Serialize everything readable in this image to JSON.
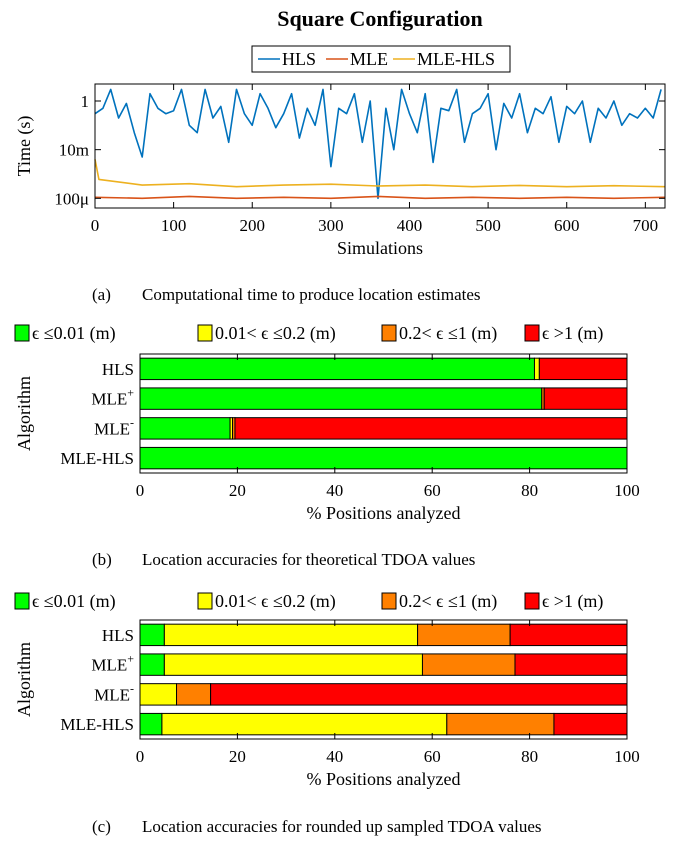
{
  "figure": {
    "title": "Square Configuration",
    "captions": [
      {
        "letter": "(a)",
        "text": "Computational time to produce location estimates"
      },
      {
        "letter": "(b)",
        "text": "Location accuracies for theoretical TDOA values"
      },
      {
        "letter": "(c)",
        "text": "Location accuracies for rounded up sampled TDOA values"
      }
    ]
  },
  "chart_data": [
    {
      "type": "line",
      "title": "Square Configuration",
      "xlabel": "Simulations",
      "ylabel": "Time (s)",
      "yscale": "log",
      "xlim": [
        0,
        725
      ],
      "ylim": [
        4e-05,
        5
      ],
      "xticks": [
        0,
        100,
        200,
        300,
        400,
        500,
        600,
        700
      ],
      "xtick_labels": [
        "0",
        "100",
        "200",
        "300",
        "400",
        "500",
        "600",
        "700"
      ],
      "yticks": [
        0.0001,
        0.01,
        1
      ],
      "ytick_labels": [
        "100μ",
        "10m",
        "1"
      ],
      "legend_position": "top-center",
      "series": [
        {
          "name": "HLS",
          "color": "#0072BD",
          "x": [
            0,
            10,
            20,
            30,
            40,
            50,
            60,
            70,
            80,
            90,
            100,
            110,
            120,
            130,
            140,
            150,
            160,
            170,
            180,
            190,
            200,
            210,
            220,
            230,
            240,
            250,
            260,
            270,
            280,
            290,
            300,
            310,
            320,
            330,
            340,
            350,
            360,
            370,
            380,
            390,
            400,
            410,
            420,
            430,
            440,
            450,
            460,
            470,
            480,
            490,
            500,
            510,
            520,
            530,
            540,
            550,
            560,
            570,
            580,
            590,
            600,
            610,
            620,
            630,
            640,
            650,
            660,
            670,
            680,
            690,
            700,
            710,
            720
          ],
          "values": [
            0.3,
            0.5,
            3,
            0.2,
            0.8,
            0.05,
            0.005,
            2,
            0.5,
            0.3,
            0.4,
            3,
            0.1,
            0.05,
            3,
            0.2,
            0.6,
            0.02,
            3,
            0.3,
            0.1,
            2,
            0.5,
            0.08,
            0.3,
            2,
            0.03,
            0.5,
            0.1,
            3,
            0.002,
            0.5,
            0.3,
            2,
            0.02,
            1,
            0.0001,
            0.5,
            0.01,
            3,
            0.3,
            0.05,
            2,
            0.003,
            0.5,
            0.4,
            3,
            0.02,
            0.3,
            0.5,
            2,
            0.01,
            0.8,
            0.2,
            2,
            0.05,
            0.5,
            0.3,
            1.5,
            0.02,
            0.6,
            0.3,
            1,
            0.02,
            0.5,
            0.2,
            1,
            0.1,
            0.3,
            0.2,
            0.5,
            0.2,
            3
          ]
        },
        {
          "name": "MLE",
          "color": "#D95319",
          "x": [
            0,
            60,
            120,
            180,
            240,
            300,
            360,
            420,
            480,
            540,
            600,
            660,
            725
          ],
          "values": [
            0.00011,
            0.0001,
            0.00012,
            0.0001,
            0.00011,
            0.0001,
            0.00012,
            0.0001,
            0.00011,
            0.0001,
            0.00011,
            0.0001,
            0.00011
          ]
        },
        {
          "name": "MLE-HLS",
          "color": "#EDB120",
          "x": [
            0,
            5,
            60,
            120,
            180,
            240,
            300,
            360,
            420,
            480,
            540,
            600,
            660,
            725
          ],
          "values": [
            0.004,
            0.0006,
            0.00035,
            0.0004,
            0.0003,
            0.00035,
            0.00038,
            0.00032,
            0.00035,
            0.0003,
            0.00034,
            0.0003,
            0.00033,
            0.0003
          ]
        }
      ]
    },
    {
      "type": "bar",
      "orientation": "horizontal",
      "stacked": true,
      "xlabel": "% Positions analyzed",
      "ylabel": "Algorithm",
      "xlim": [
        0,
        100
      ],
      "xticks": [
        0,
        20,
        40,
        60,
        80,
        100
      ],
      "xtick_labels": [
        "0",
        "20",
        "40",
        "60",
        "80",
        "100"
      ],
      "categories": [
        "HLS",
        "MLE",
        "MLE",
        "MLE-HLS"
      ],
      "category_superscripts": [
        "",
        "+",
        "-",
        ""
      ],
      "legend_position": "top",
      "series": [
        {
          "name": "ϵ ≤0.01 (m)",
          "color": "#00FF00",
          "values": [
            81,
            82.5,
            18.5,
            100
          ]
        },
        {
          "name": "0.01< ϵ ≤0.2 (m)",
          "color": "#FFFF00",
          "values": [
            1,
            0,
            0.5,
            0
          ]
        },
        {
          "name": "0.2< ϵ ≤1 (m)",
          "color": "#FF8000",
          "values": [
            0,
            0.5,
            0.5,
            0
          ]
        },
        {
          "name": "ϵ >1 (m)",
          "color": "#FF0000",
          "values": [
            18,
            17,
            80.5,
            0
          ]
        }
      ]
    },
    {
      "type": "bar",
      "orientation": "horizontal",
      "stacked": true,
      "xlabel": "% Positions analyzed",
      "ylabel": "Algorithm",
      "xlim": [
        0,
        100
      ],
      "xticks": [
        0,
        20,
        40,
        60,
        80,
        100
      ],
      "xtick_labels": [
        "0",
        "20",
        "40",
        "60",
        "80",
        "100"
      ],
      "categories": [
        "HLS",
        "MLE",
        "MLE",
        "MLE-HLS"
      ],
      "category_superscripts": [
        "",
        "+",
        "-",
        ""
      ],
      "legend_position": "top",
      "series": [
        {
          "name": "ϵ ≤0.01 (m)",
          "color": "#00FF00",
          "values": [
            5,
            5,
            0,
            4.5
          ]
        },
        {
          "name": "0.01< ϵ ≤0.2 (m)",
          "color": "#FFFF00",
          "values": [
            52,
            53,
            7.5,
            58.5
          ]
        },
        {
          "name": "0.2< ϵ ≤1 (m)",
          "color": "#FF8000",
          "values": [
            19,
            19,
            7,
            22
          ]
        },
        {
          "name": "ϵ >1 (m)",
          "color": "#FF0000",
          "values": [
            24,
            23,
            85.5,
            15
          ]
        }
      ]
    }
  ]
}
